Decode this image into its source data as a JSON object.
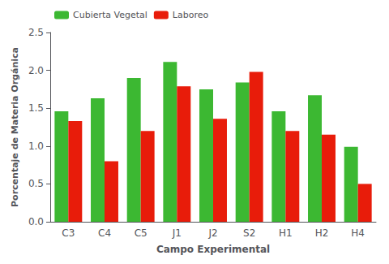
{
  "chart_data": {
    "type": "bar",
    "categories": [
      "C3",
      "C4",
      "C5",
      "J1",
      "J2",
      "S2",
      "H1",
      "H2",
      "H4"
    ],
    "series": [
      {
        "name": "Cubierta Vegetal",
        "color": "#3cb832",
        "values": [
          1.46,
          1.63,
          1.9,
          2.11,
          1.75,
          1.84,
          1.46,
          1.67,
          0.99
        ]
      },
      {
        "name": "Laboreo",
        "color": "#e81c0a",
        "values": [
          1.33,
          0.8,
          1.2,
          1.79,
          1.36,
          1.98,
          1.2,
          1.15,
          0.5
        ]
      }
    ],
    "xlabel": "Campo Experimental",
    "ylabel": "Porcentaje de Materia Orgánica",
    "ylim": [
      0,
      2.5
    ],
    "yticks": [
      {
        "value": 0,
        "label": "0.0"
      },
      0.5,
      {
        "value": 1.0,
        "label": "1.0"
      },
      1.5,
      {
        "value": 2.0,
        "label": "2.0"
      },
      2.5
    ],
    "grid": false,
    "legend": "upper left"
  }
}
